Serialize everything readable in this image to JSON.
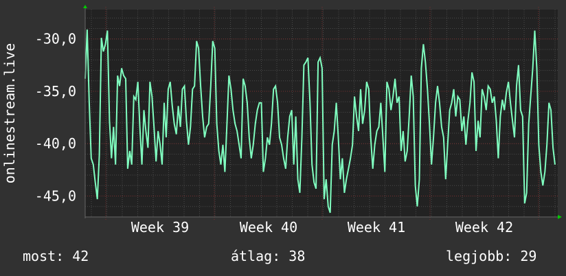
{
  "chart_data": {
    "type": "line",
    "ylabel": "onlinestream.live",
    "ylim": [
      -47.0,
      -27.2
    ],
    "y_ticks": [
      "-30,0",
      "-35,0",
      "-40,0",
      "-45,0"
    ],
    "y_tick_values": [
      -30,
      -35,
      -40,
      -45
    ],
    "x_ticks": [
      "Week 39",
      "Week 40",
      "Week 41",
      "Week 42"
    ],
    "grid": true,
    "line_color": "#80ffc0",
    "background_color": "#313131",
    "plot_background": "#222222",
    "values": [
      -33.8,
      -29.1,
      -36.1,
      -41.4,
      -42.0,
      -43.7,
      -45.3,
      -41.1,
      -29.9,
      -31.2,
      -30.5,
      -29.2,
      -37.8,
      -41.4,
      -38.4,
      -42.0,
      -33.5,
      -34.5,
      -32.8,
      -33.5,
      -33.8,
      -42.4,
      -40.7,
      -42.0,
      -35.5,
      -35.8,
      -34.1,
      -38.4,
      -42.0,
      -36.8,
      -38.8,
      -40.4,
      -34.1,
      -35.5,
      -38.4,
      -41.7,
      -38.8,
      -40.1,
      -42.0,
      -36.1,
      -39.4,
      -34.8,
      -34.1,
      -36.4,
      -38.1,
      -39.1,
      -36.4,
      -38.4,
      -34.8,
      -34.5,
      -37.8,
      -40.1,
      -38.4,
      -34.8,
      -34.5,
      -30.2,
      -30.9,
      -34.5,
      -37.4,
      -39.4,
      -38.4,
      -38.1,
      -34.5,
      -30.2,
      -30.9,
      -38.1,
      -40.7,
      -42.0,
      -40.1,
      -42.7,
      -38.1,
      -33.5,
      -34.8,
      -36.8,
      -38.1,
      -38.8,
      -40.1,
      -41.4,
      -33.8,
      -34.5,
      -36.1,
      -39.4,
      -41.4,
      -40.1,
      -38.1,
      -36.8,
      -36.1,
      -36.1,
      -42.7,
      -41.4,
      -39.4,
      -40.1,
      -38.1,
      -34.8,
      -34.5,
      -36.1,
      -39.4,
      -40.1,
      -41.4,
      -42.4,
      -39.4,
      -37.4,
      -36.8,
      -42.0,
      -37.4,
      -43.4,
      -44.7,
      -39.4,
      -32.5,
      -32.2,
      -31.8,
      -36.1,
      -42.0,
      -43.7,
      -44.3,
      -32.2,
      -31.8,
      -32.8,
      -45.3,
      -43.4,
      -46.0,
      -46.6,
      -40.1,
      -38.8,
      -36.1,
      -39.4,
      -43.4,
      -41.4,
      -44.7,
      -43.4,
      -42.4,
      -41.4,
      -40.1,
      -35.5,
      -37.4,
      -38.8,
      -34.8,
      -38.1,
      -36.8,
      -34.1,
      -34.8,
      -39.4,
      -42.4,
      -40.1,
      -38.8,
      -38.4,
      -36.1,
      -39.4,
      -42.7,
      -34.1,
      -34.8,
      -36.8,
      -35.5,
      -33.8,
      -36.1,
      -35.5,
      -40.7,
      -38.8,
      -41.7,
      -40.7,
      -37.4,
      -33.5,
      -35.5,
      -44.0,
      -46.0,
      -43.4,
      -32.8,
      -30.5,
      -32.2,
      -34.8,
      -38.1,
      -42.0,
      -39.4,
      -36.1,
      -34.5,
      -36.1,
      -38.4,
      -39.4,
      -43.4,
      -40.1,
      -36.8,
      -36.1,
      -34.8,
      -37.4,
      -35.5,
      -35.8,
      -38.8,
      -37.4,
      -40.1,
      -37.8,
      -36.1,
      -33.2,
      -34.1,
      -40.7,
      -37.8,
      -39.4,
      -34.8,
      -35.5,
      -36.8,
      -34.5,
      -34.8,
      -36.1,
      -35.5,
      -37.8,
      -41.4,
      -37.4,
      -35.8,
      -36.8,
      -35.1,
      -34.1,
      -36.1,
      -37.8,
      -39.4,
      -34.5,
      -32.5,
      -36.8,
      -37.4,
      -45.7,
      -44.7,
      -38.1,
      -35.5,
      -32.8,
      -29.2,
      -32.8,
      -40.1,
      -42.7,
      -44.0,
      -42.7,
      -40.1,
      -36.1,
      -36.8,
      -40.4,
      -42.0
    ]
  },
  "legend": {
    "current": "most: 42",
    "average": "átlag: 38",
    "max": "legjobb: 29"
  }
}
